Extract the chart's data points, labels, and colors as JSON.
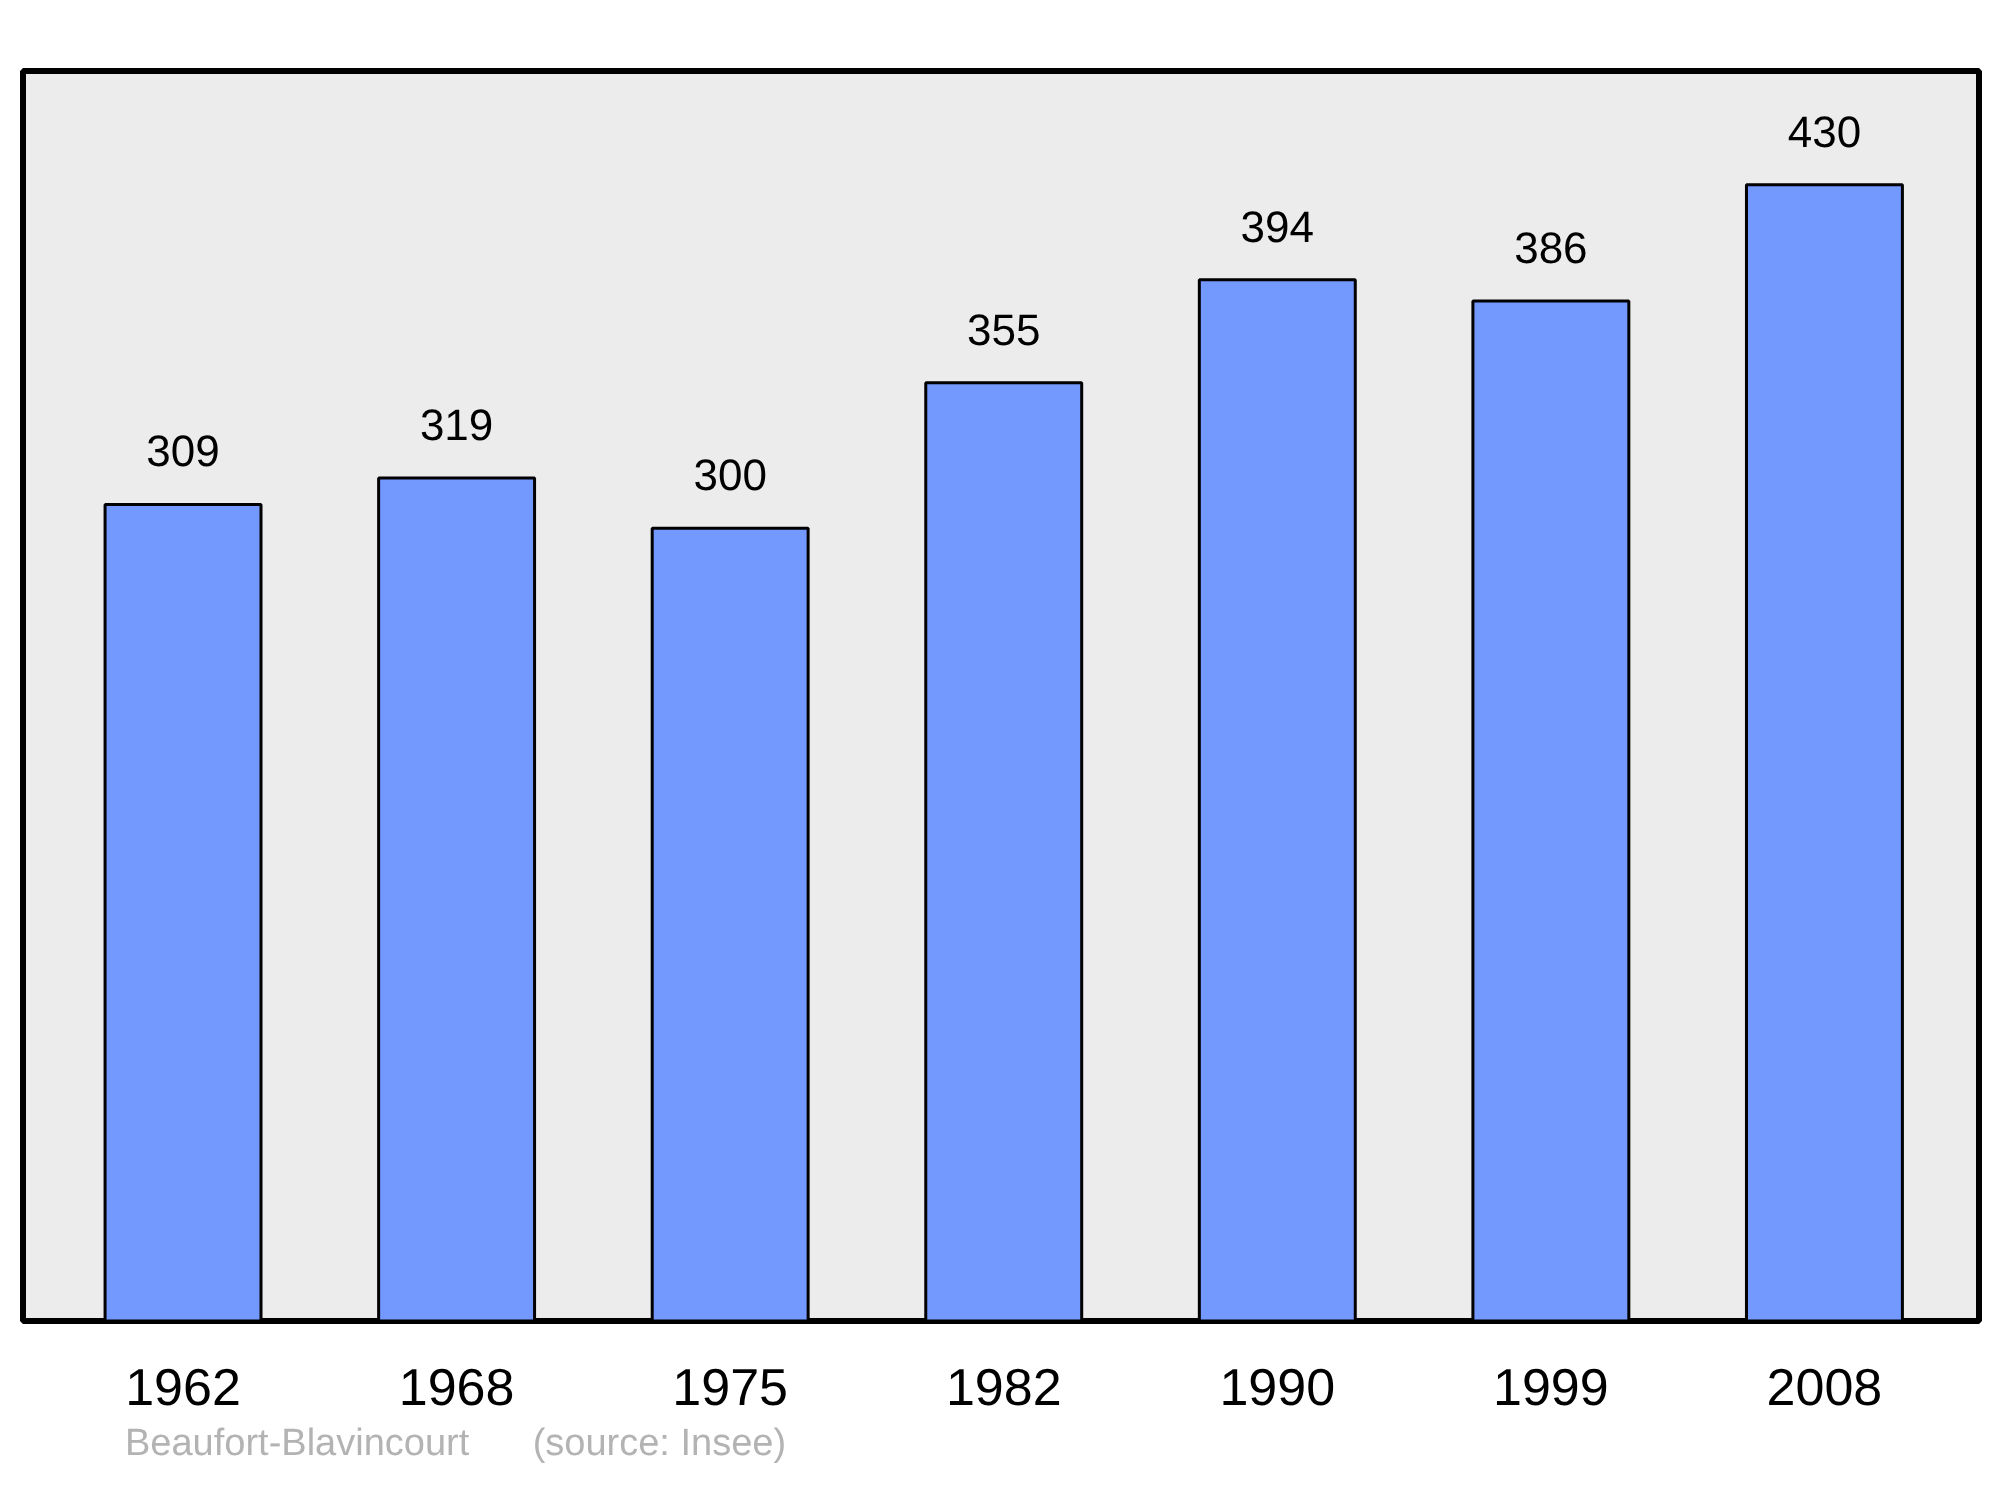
{
  "chart_data": {
    "type": "bar",
    "categories": [
      "1962",
      "1968",
      "1975",
      "1982",
      "1990",
      "1999",
      "2008"
    ],
    "values": [
      309,
      319,
      300,
      355,
      394,
      386,
      430
    ],
    "color": "#7399ff",
    "ylim": [
      0,
      473
    ],
    "data_labels": true,
    "tick_labels": "x",
    "annotations": [
      "Beaufort-Blavincourt",
      "(source: Insee)"
    ]
  }
}
